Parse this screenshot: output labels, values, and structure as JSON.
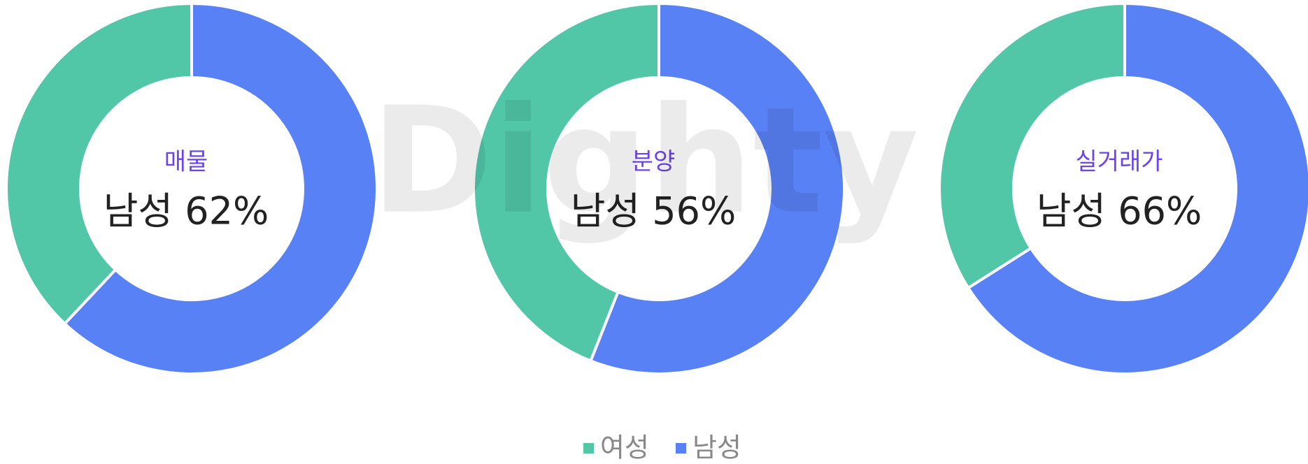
{
  "chart_data": [
    {
      "type": "donut",
      "title": "매물",
      "categories": [
        "여성",
        "남성"
      ],
      "values": [
        38,
        62
      ],
      "colors": [
        "#52c7a8",
        "#5881f5"
      ],
      "center_label": "남성 62%"
    },
    {
      "type": "donut",
      "title": "분양",
      "categories": [
        "여성",
        "남성"
      ],
      "values": [
        44,
        56
      ],
      "colors": [
        "#52c7a8",
        "#5881f5"
      ],
      "center_label": "남성 56%"
    },
    {
      "type": "donut",
      "title": "실거래가",
      "categories": [
        "여성",
        "남성"
      ],
      "values": [
        34,
        66
      ],
      "colors": [
        "#52c7a8",
        "#5881f5"
      ],
      "center_label": "남성 66%"
    }
  ],
  "legend": [
    {
      "name": "여성",
      "color": "#52c7a8"
    },
    {
      "name": "남성",
      "color": "#5881f5"
    }
  ],
  "watermark": "Dighty"
}
